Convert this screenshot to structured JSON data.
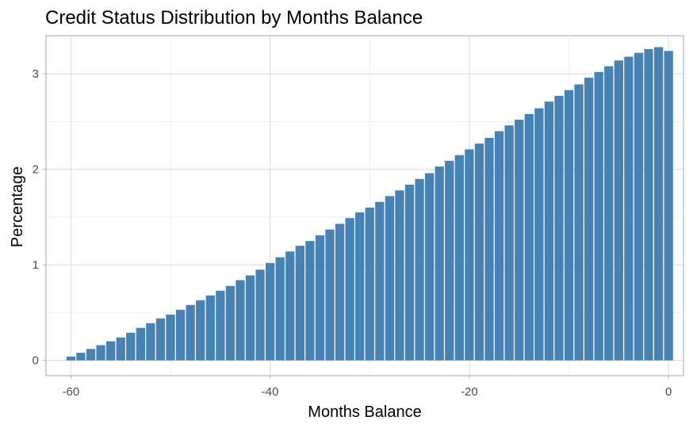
{
  "chart_data": {
    "type": "bar",
    "title": "Credit Status Distribution by Months Balance",
    "xlabel": "Months Balance",
    "ylabel": "Percentage",
    "xlim": [
      -62.5,
      1.5
    ],
    "ylim": [
      -0.16,
      3.4
    ],
    "xticks": [
      -60,
      -40,
      -20,
      0
    ],
    "xtick_labels": [
      "-60",
      "-40",
      "-20",
      "0"
    ],
    "yticks": [
      0,
      1,
      2,
      3
    ],
    "ytick_labels": [
      "0",
      "1",
      "2",
      "3"
    ],
    "grid": true,
    "bar_color": "#4682B4",
    "x": [
      -60,
      -59,
      -58,
      -57,
      -56,
      -55,
      -54,
      -53,
      -52,
      -51,
      -50,
      -49,
      -48,
      -47,
      -46,
      -45,
      -44,
      -43,
      -42,
      -41,
      -40,
      -39,
      -38,
      -37,
      -36,
      -35,
      -34,
      -33,
      -32,
      -31,
      -30,
      -29,
      -28,
      -27,
      -26,
      -25,
      -24,
      -23,
      -22,
      -21,
      -20,
      -19,
      -18,
      -17,
      -16,
      -15,
      -14,
      -13,
      -12,
      -11,
      -10,
      -9,
      -8,
      -7,
      -6,
      -5,
      -4,
      -3,
      -2,
      -1,
      0
    ],
    "values": [
      0.04,
      0.08,
      0.12,
      0.16,
      0.2,
      0.24,
      0.29,
      0.34,
      0.39,
      0.44,
      0.48,
      0.53,
      0.58,
      0.63,
      0.68,
      0.73,
      0.78,
      0.84,
      0.89,
      0.95,
      1.02,
      1.08,
      1.14,
      1.2,
      1.25,
      1.31,
      1.37,
      1.43,
      1.49,
      1.55,
      1.6,
      1.66,
      1.72,
      1.78,
      1.84,
      1.9,
      1.96,
      2.03,
      2.09,
      2.15,
      2.21,
      2.27,
      2.33,
      2.4,
      2.46,
      2.52,
      2.58,
      2.64,
      2.71,
      2.77,
      2.83,
      2.89,
      2.96,
      3.02,
      3.08,
      3.14,
      3.18,
      3.22,
      3.26,
      3.28,
      3.24
    ]
  }
}
